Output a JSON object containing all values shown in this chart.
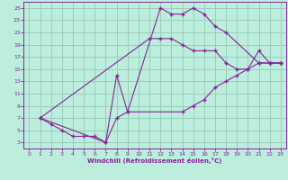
{
  "xlabel": "Windchill (Refroidissement éolien,°C)",
  "bg_color": "#bbeedd",
  "grid_color": "#99ccbb",
  "line_color": "#882299",
  "spine_color": "#882299",
  "xlim": [
    -0.5,
    23.5
  ],
  "ylim": [
    2,
    26
  ],
  "xticks": [
    0,
    1,
    2,
    3,
    4,
    5,
    6,
    7,
    8,
    9,
    10,
    11,
    12,
    13,
    14,
    15,
    16,
    17,
    18,
    19,
    20,
    21,
    22,
    23
  ],
  "yticks": [
    3,
    5,
    7,
    9,
    11,
    13,
    15,
    17,
    19,
    21,
    23,
    25
  ],
  "line1_x": [
    1,
    2,
    3,
    4,
    5,
    6,
    7,
    8,
    9,
    12,
    13,
    14,
    15,
    16,
    17,
    18,
    21,
    22,
    23
  ],
  "line1_y": [
    7,
    6,
    5,
    4,
    4,
    4,
    3,
    7,
    8,
    25,
    24,
    24,
    25,
    24,
    22,
    21,
    16,
    16,
    16
  ],
  "line2_x": [
    1,
    11,
    12,
    13,
    14,
    15,
    16,
    17,
    18,
    19,
    20,
    21,
    22,
    23
  ],
  "line2_y": [
    7,
    20,
    20,
    20,
    19,
    18,
    18,
    18,
    16,
    15,
    15,
    16,
    16,
    16
  ],
  "line3_x": [
    1,
    7,
    8,
    9,
    14,
    15,
    16,
    17,
    18,
    19,
    20,
    21,
    22,
    23
  ],
  "line3_y": [
    7,
    3,
    14,
    8,
    8,
    9,
    10,
    12,
    13,
    14,
    15,
    18,
    16,
    16
  ]
}
